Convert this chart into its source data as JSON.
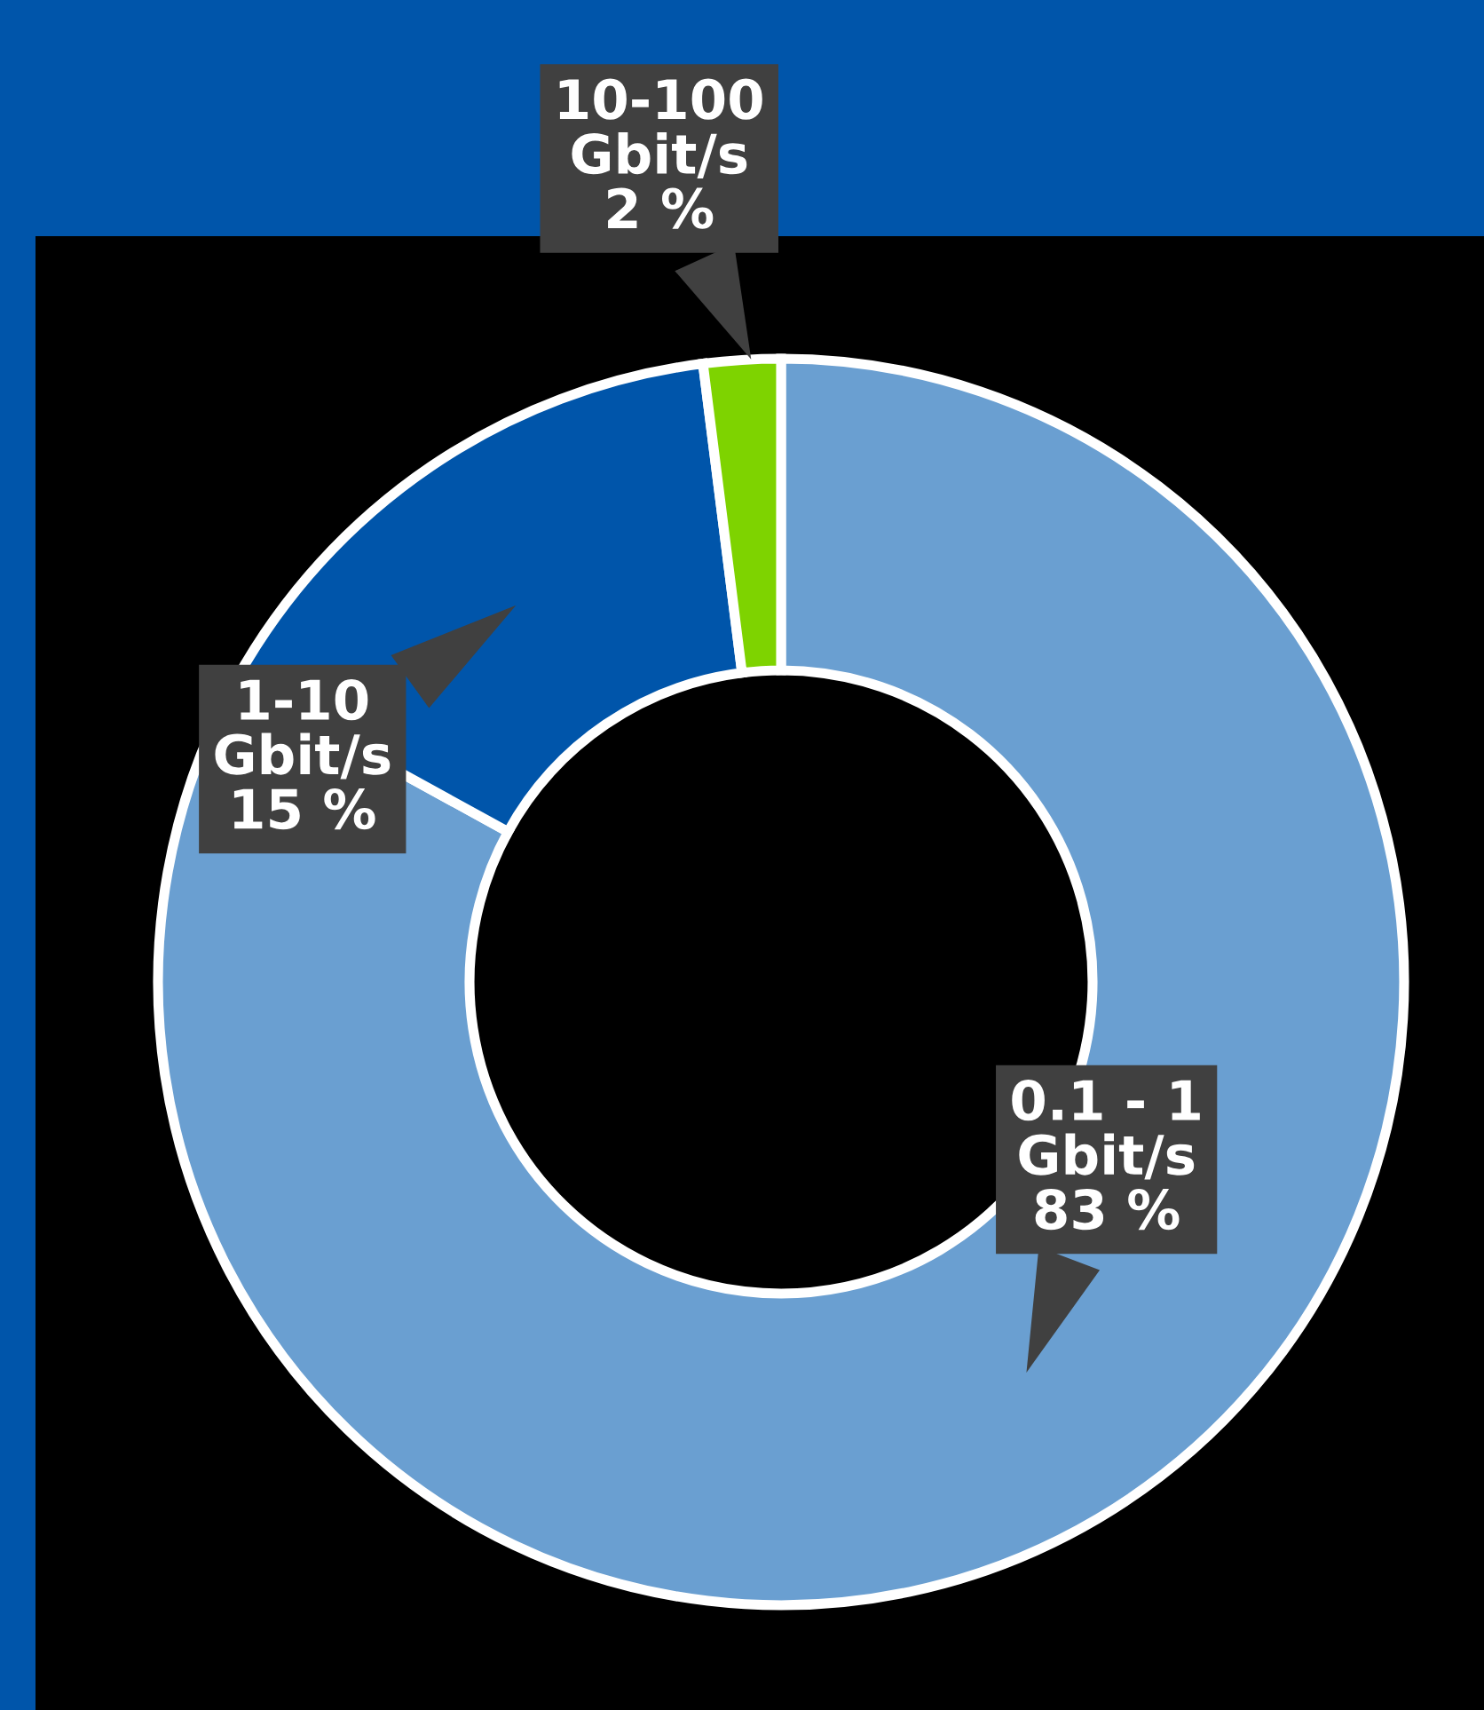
{
  "chart_data": {
    "type": "donut",
    "categories": [
      "0.1 - 1\nGbit/s",
      "1-10\nGbit/s",
      "10-100\nGbit/s"
    ],
    "values": [
      83,
      15,
      2
    ],
    "colors": [
      "#6a9fd1",
      "#0055aa",
      "#7ed300"
    ],
    "value_labels": [
      "83 %",
      "15 %",
      "2 %"
    ]
  }
}
